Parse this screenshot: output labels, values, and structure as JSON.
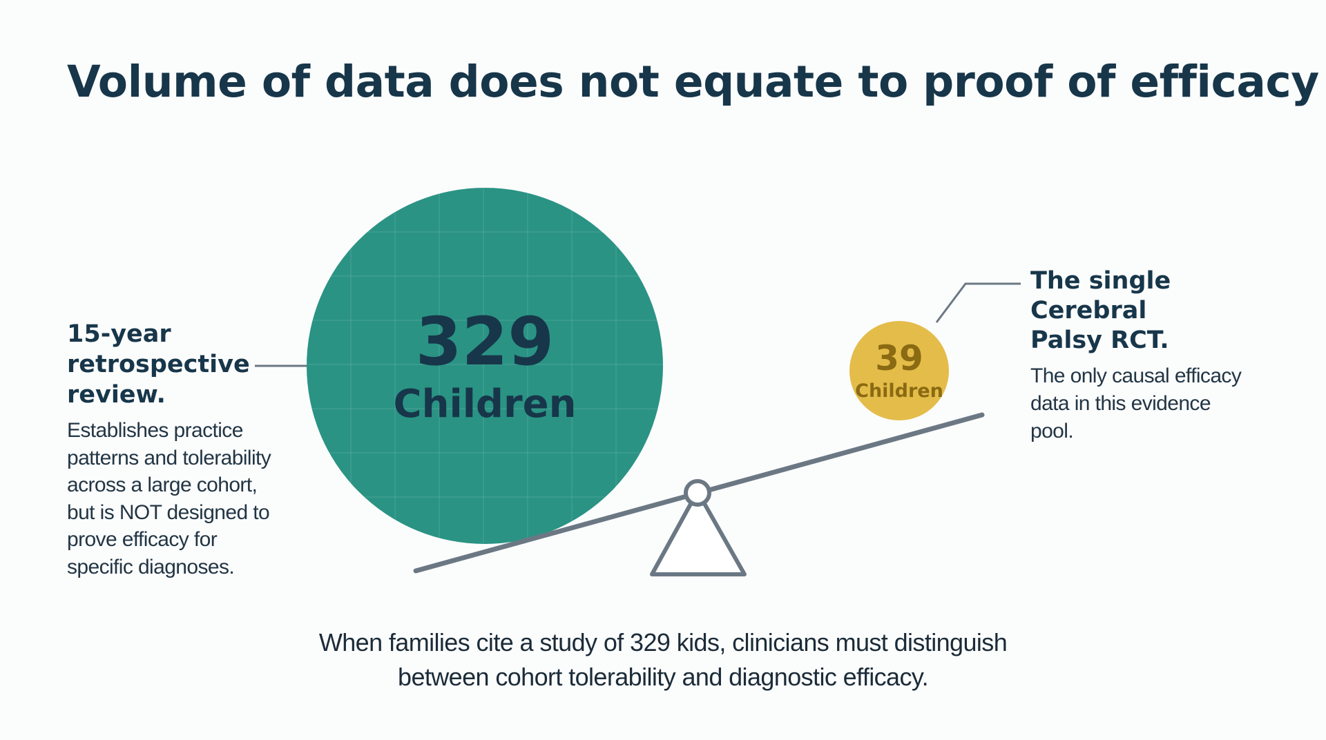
{
  "title": "Volume of data does not equate to proof of efficacy",
  "large_study": {
    "number": "329",
    "unit": "Children",
    "heading_lines": [
      "15-year",
      "retrospective",
      "review."
    ],
    "body_lines": [
      "Establishes practice",
      "patterns and tolerability",
      "across a large cohort,",
      "but is NOT designed to",
      "prove efficacy for",
      "specific diagnoses."
    ]
  },
  "small_study": {
    "number": "39",
    "unit": "Children",
    "heading_lines": [
      "The single",
      "Cerebral",
      "Palsy RCT."
    ],
    "body_lines": [
      "The only causal efficacy",
      "data in this evidence",
      "pool."
    ]
  },
  "footer_lines": [
    "When families cite a study of 329 kids, clinicians must distinguish",
    "between cohort tolerability and diagnostic efficacy."
  ],
  "colors": {
    "large_circle": "#2a9384",
    "small_circle": "#e4bc49",
    "dark_text": "#17364a",
    "small_circle_text": "#8a6a12",
    "seesaw": "#6b7884"
  }
}
